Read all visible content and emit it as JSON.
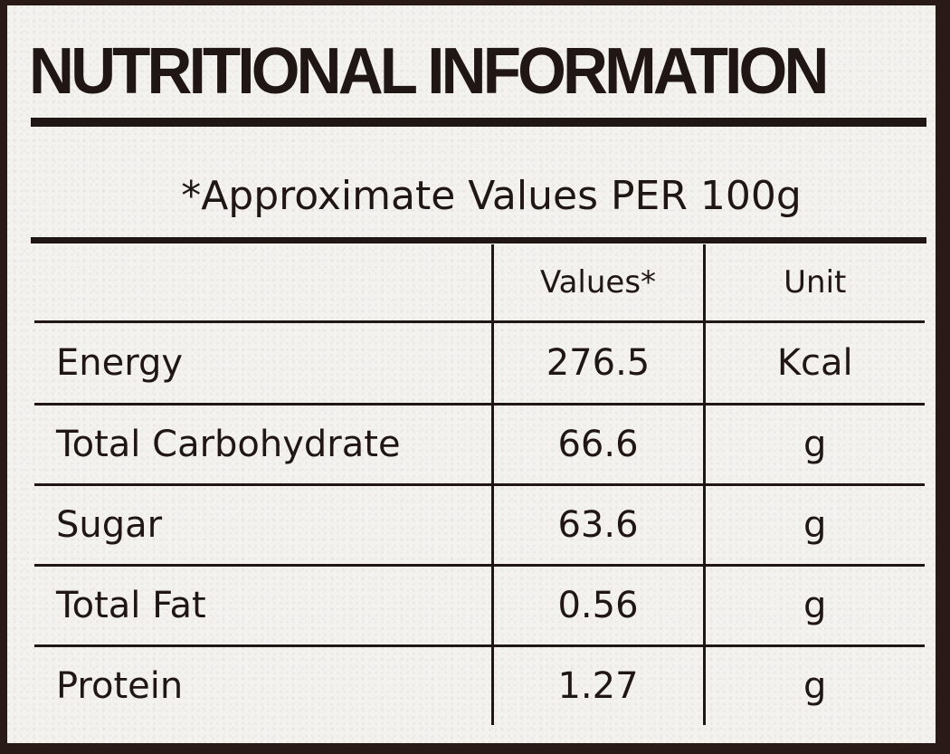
{
  "title": "NUTRITIONAL INFORMATION",
  "subtitle": "*Approximate Values PER 100g",
  "table": {
    "headers": [
      "",
      "Values*",
      "Unit"
    ],
    "rows": [
      {
        "nutrient": "Energy",
        "value": "276.5",
        "unit": "Kcal"
      },
      {
        "nutrient": "Total Carbohydrate",
        "value": "66.6",
        "unit": "g"
      },
      {
        "nutrient": "Sugar",
        "value": "63.6",
        "unit": "g"
      },
      {
        "nutrient": "Total Fat",
        "value": "0.56",
        "unit": "g"
      },
      {
        "nutrient": "Protein",
        "value": "1.27",
        "unit": "g"
      }
    ]
  },
  "colors": {
    "ink": "#201614",
    "paper": "#f3f2ef",
    "background": "#2a1a17"
  }
}
